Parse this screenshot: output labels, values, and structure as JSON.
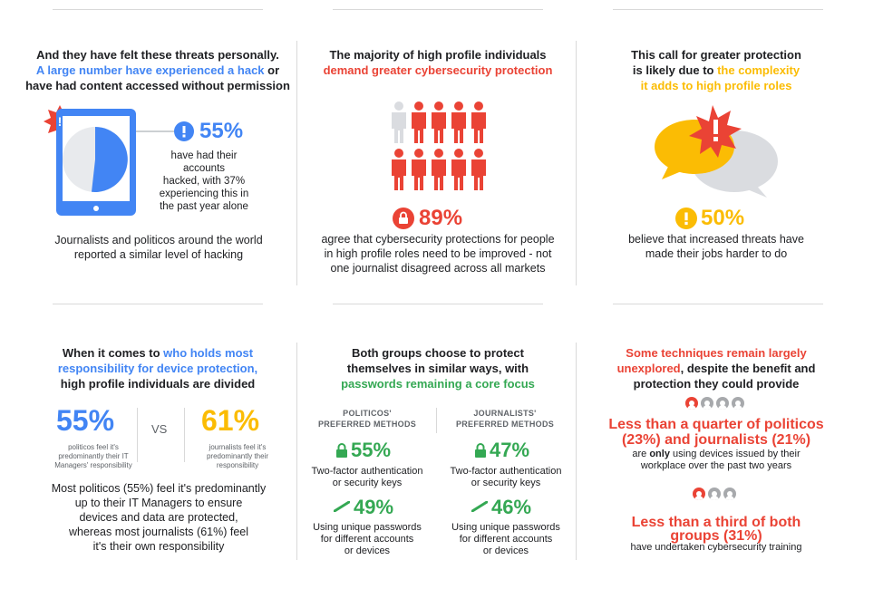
{
  "panel1": {
    "heading_line1": "And they have felt these threats personally.",
    "heading_highlight": "A large number have experienced a hack",
    "heading_line2_tail": " or",
    "heading_line3": "have had content accessed without permission",
    "stat": "55%",
    "stat_desc": [
      "have had their accounts",
      "hacked, with 37%",
      "experiencing this in",
      "the past year alone"
    ],
    "footer": [
      "Journalists and politicos around the world",
      "reported a similar level of hacking"
    ]
  },
  "panel2": {
    "heading_line1": "The majority of high profile individuals",
    "heading_highlight": "demand greater cybersecurity protection",
    "stat": "89%",
    "stat_desc": [
      "agree that cybersecurity protections for people",
      "in high profile roles need to be improved - not",
      "one journalist disagreed across all markets"
    ]
  },
  "panel3": {
    "heading_line1": "This call for greater protection",
    "heading_line2_pre": "is likely due to ",
    "heading_highlight1": "the complexity",
    "heading_highlight2": "it adds to high profile roles",
    "stat": "50%",
    "stat_desc": [
      "believe that increased threats have",
      "made their jobs harder to do"
    ]
  },
  "panel4": {
    "heading_pre": "When it comes to ",
    "heading_highlight1": "who holds most",
    "heading_highlight2": "responsibility for device protection,",
    "heading_line3": "high profile individuals are divided",
    "stat_left": "55%",
    "left_desc": [
      "politicos feel it's",
      "predominantly their IT",
      "Managers' responsibility"
    ],
    "vs": "VS",
    "stat_right": "61%",
    "right_desc": [
      "journalists feel it's",
      "predominantly their",
      "responsibility"
    ],
    "footer": [
      "Most politicos (55%) feel it's predominantly",
      "up to their IT Managers to ensure",
      "devices and data are protected,",
      "whereas most journalists (61%) feel",
      "it's their own responsibility"
    ]
  },
  "panel5": {
    "heading_line1": "Both groups choose to protect",
    "heading_line2": "themselves in similar ways, with",
    "heading_highlight": "passwords remaining a core focus",
    "col1_head": [
      "POLITICOS'",
      "PREFERRED METHODS"
    ],
    "col2_head": [
      "JOURNALISTS'",
      "PREFERRED METHODS"
    ],
    "col1_stat1": "55%",
    "col1_text1": [
      "Two-factor authentication",
      "or security keys"
    ],
    "col1_stat2": "49%",
    "col1_text2": [
      "Using unique passwords",
      "for different accounts",
      "or devices"
    ],
    "col2_stat1": "47%",
    "col2_text1": [
      "Two-factor authentication",
      "or security keys"
    ],
    "col2_stat2": "46%",
    "col2_text2": [
      "Using unique passwords",
      "for different accounts",
      "or devices"
    ]
  },
  "panel6": {
    "heading_highlight1": "Some techniques remain largely",
    "heading_highlight2": "unexplored",
    "heading_tail": ", despite the benefit and",
    "heading_line3": "protection they could provide",
    "stat1": [
      "Less than a quarter of politicos",
      "(23%) and journalists (21%)"
    ],
    "stat1_desc_bold": "only",
    "stat1_desc": [
      "are ",
      " using devices issued by their",
      "workplace over the past two years"
    ],
    "stat2": [
      "Less than a third of both",
      "groups (31%)"
    ],
    "stat2_desc": "have undertaken cybersecurity training"
  },
  "colors": {
    "blue": "#4285f4",
    "red": "#ea4335",
    "yellow": "#fbbc04",
    "green": "#34a853",
    "grey": "#a7a9ac"
  },
  "icons": [
    "phone-icon",
    "pie-icon",
    "alert-icon",
    "people-icon",
    "lock-icon",
    "speech-bubbles-icon",
    "lock-small-icon",
    "key-icon",
    "person-dot-icon"
  ]
}
